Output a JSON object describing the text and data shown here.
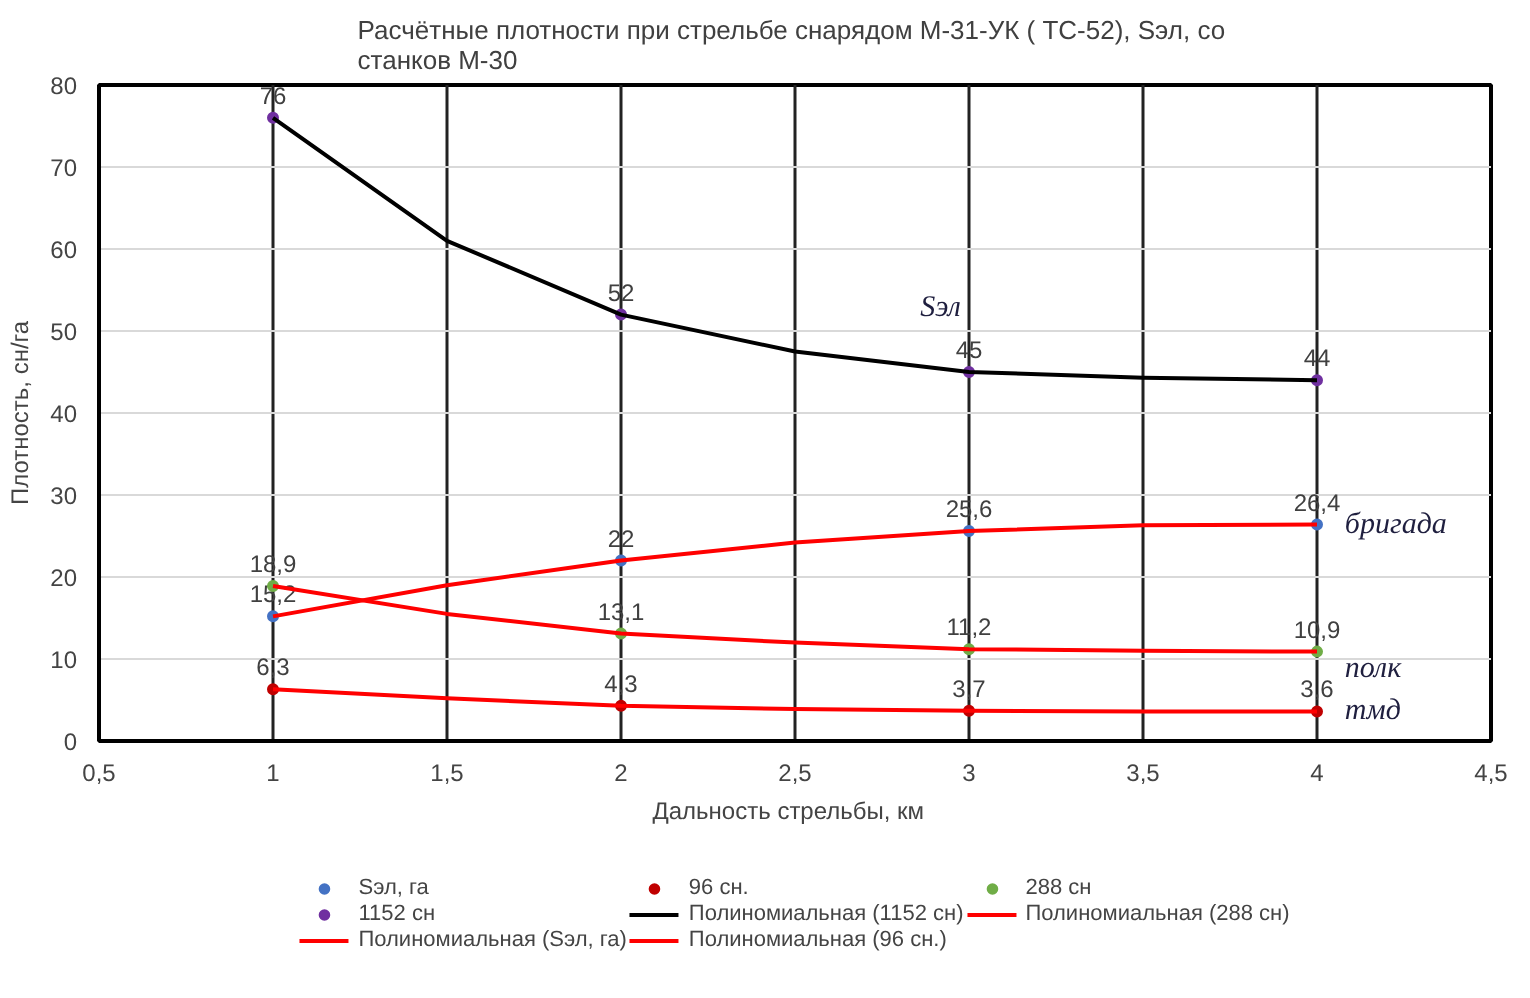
{
  "chart_data": {
    "type": "scatter",
    "title": "Расчётные плотности при стрельбе снарядом М-31-УК ( ТС-52),  Sэл, со\nстанков  М-30",
    "xlabel": "Дальность  стрельбы,  км",
    "ylabel": "Плотность, сн/га",
    "x": [
      1,
      2,
      3,
      4
    ],
    "series": [
      {
        "name": "Sэл, га",
        "color": "#4472c4",
        "values": [
          15.2,
          22,
          25.6,
          26.4
        ],
        "value_labels": [
          "15,2",
          "22",
          "25,6",
          "26,4"
        ]
      },
      {
        "name": "96 сн.",
        "color": "#c00000",
        "values": [
          6.3,
          4.3,
          3.7,
          3.6
        ],
        "value_labels": [
          "6,3",
          "4,3",
          "3,7",
          "3,6"
        ]
      },
      {
        "name": "288 сн",
        "color": "#70ad47",
        "values": [
          18.9,
          13.1,
          11.2,
          10.9
        ],
        "value_labels": [
          "18,9",
          "13,1",
          "11,2",
          "10,9"
        ]
      },
      {
        "name": "1152 сн",
        "color": "#7030a0",
        "values": [
          76,
          52,
          45,
          44
        ],
        "value_labels": [
          "76",
          "52",
          "45",
          "44"
        ]
      },
      {
        "name": "Полиномиальная (1152 сн)",
        "type": "line",
        "marker": "none",
        "color": "#000000",
        "x": [
          1,
          1.5,
          2,
          2.5,
          3,
          3.5,
          4
        ],
        "values": [
          76,
          61,
          52,
          47.5,
          45,
          44.3,
          44
        ]
      },
      {
        "name": "Полиномиальная (288 сн)",
        "type": "line",
        "marker": "none",
        "color": "#ff0000",
        "x": [
          1,
          1.5,
          2,
          2.5,
          3,
          3.5,
          4
        ],
        "values": [
          18.9,
          15.5,
          13.1,
          12,
          11.2,
          11,
          10.9
        ]
      },
      {
        "name": "Полиномиальная (Sэл, га)",
        "type": "line",
        "marker": "none",
        "color": "#ff0000",
        "x": [
          1,
          1.5,
          2,
          2.5,
          3,
          3.5,
          4
        ],
        "values": [
          15.2,
          19,
          22,
          24.2,
          25.6,
          26.3,
          26.4
        ]
      },
      {
        "name": "Полиномиальная (96 сн.)",
        "type": "line",
        "marker": "none",
        "color": "#ff0000",
        "x": [
          1,
          1.5,
          2,
          2.5,
          3,
          3.5,
          4
        ],
        "values": [
          6.3,
          5.2,
          4.3,
          3.9,
          3.7,
          3.6,
          3.6
        ]
      }
    ],
    "annotations": [
      "Sэл",
      "бригада",
      "полк",
      "тмд"
    ],
    "xlim": [
      0.5,
      4.5
    ],
    "xticks": [
      {
        "value": 0.5,
        "label": "0,5"
      },
      1,
      {
        "value": 1.5,
        "label": "1,5"
      },
      2,
      {
        "value": 2.5,
        "label": "2,5"
      },
      3,
      {
        "value": 3.5,
        "label": "3,5"
      },
      4,
      {
        "value": 4.5,
        "label": "4,5"
      }
    ],
    "ylim": [
      0,
      80
    ],
    "yticks": [
      0,
      10,
      20,
      30,
      40,
      50,
      60,
      70,
      80
    ],
    "grid": true,
    "legend": "bottom",
    "marker": "circle",
    "line_style": "solid"
  }
}
